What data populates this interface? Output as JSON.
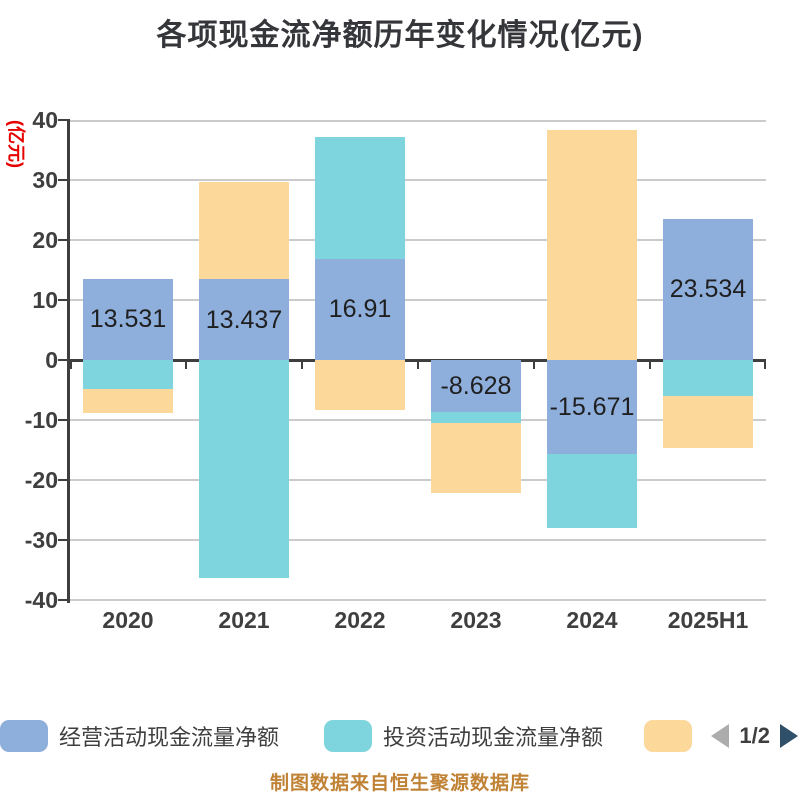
{
  "title": "各项现金流净额历年变化情况(亿元)",
  "footer_note": "制图数据来自恒生聚源数据库",
  "legend": {
    "items": [
      {
        "label": "经营活动现金流量净额",
        "color": "#8eaedc"
      },
      {
        "label": "投资活动现金流量净额",
        "color": "#7fd5dd"
      },
      {
        "label": "",
        "color": "#fcd89b"
      }
    ],
    "pager": {
      "text": "1/2",
      "prev_color": "#acacac",
      "next_color": "#30506a"
    }
  },
  "chart_data": {
    "type": "bar",
    "stacked": true,
    "title": "各项现金流净额历年变化情况(亿元)",
    "ylabel": "(亿元)",
    "ylabel_color": "#e60000",
    "ylim": [
      -40,
      40
    ],
    "y_ticks": [
      40,
      30,
      20,
      10,
      0,
      -10,
      -20,
      -30,
      -40
    ],
    "grid": true,
    "legend_position": "bottom",
    "categories": [
      "2020",
      "2021",
      "2022",
      "2023",
      "2024",
      "2025H1"
    ],
    "series": [
      {
        "name": "经营活动现金流量净额",
        "color": "#8eaedc",
        "values": [
          13.531,
          13.437,
          16.91,
          -8.628,
          -15.671,
          23.534
        ],
        "data_labels": [
          "13.531",
          "13.437",
          "16.91",
          "-8.628",
          "-15.671",
          "23.534"
        ]
      },
      {
        "name": "投资活动现金流量净额",
        "color": "#7fd5dd",
        "values": [
          -4.8,
          -36.3,
          20.3,
          -1.9,
          -12.3,
          -6.0
        ],
        "values_estimated": true
      },
      {
        "name": "",
        "color": "#fcd89b",
        "values": [
          -4.0,
          16.3,
          -8.4,
          -11.7,
          38.3,
          -8.7
        ],
        "values_estimated": true
      }
    ]
  }
}
